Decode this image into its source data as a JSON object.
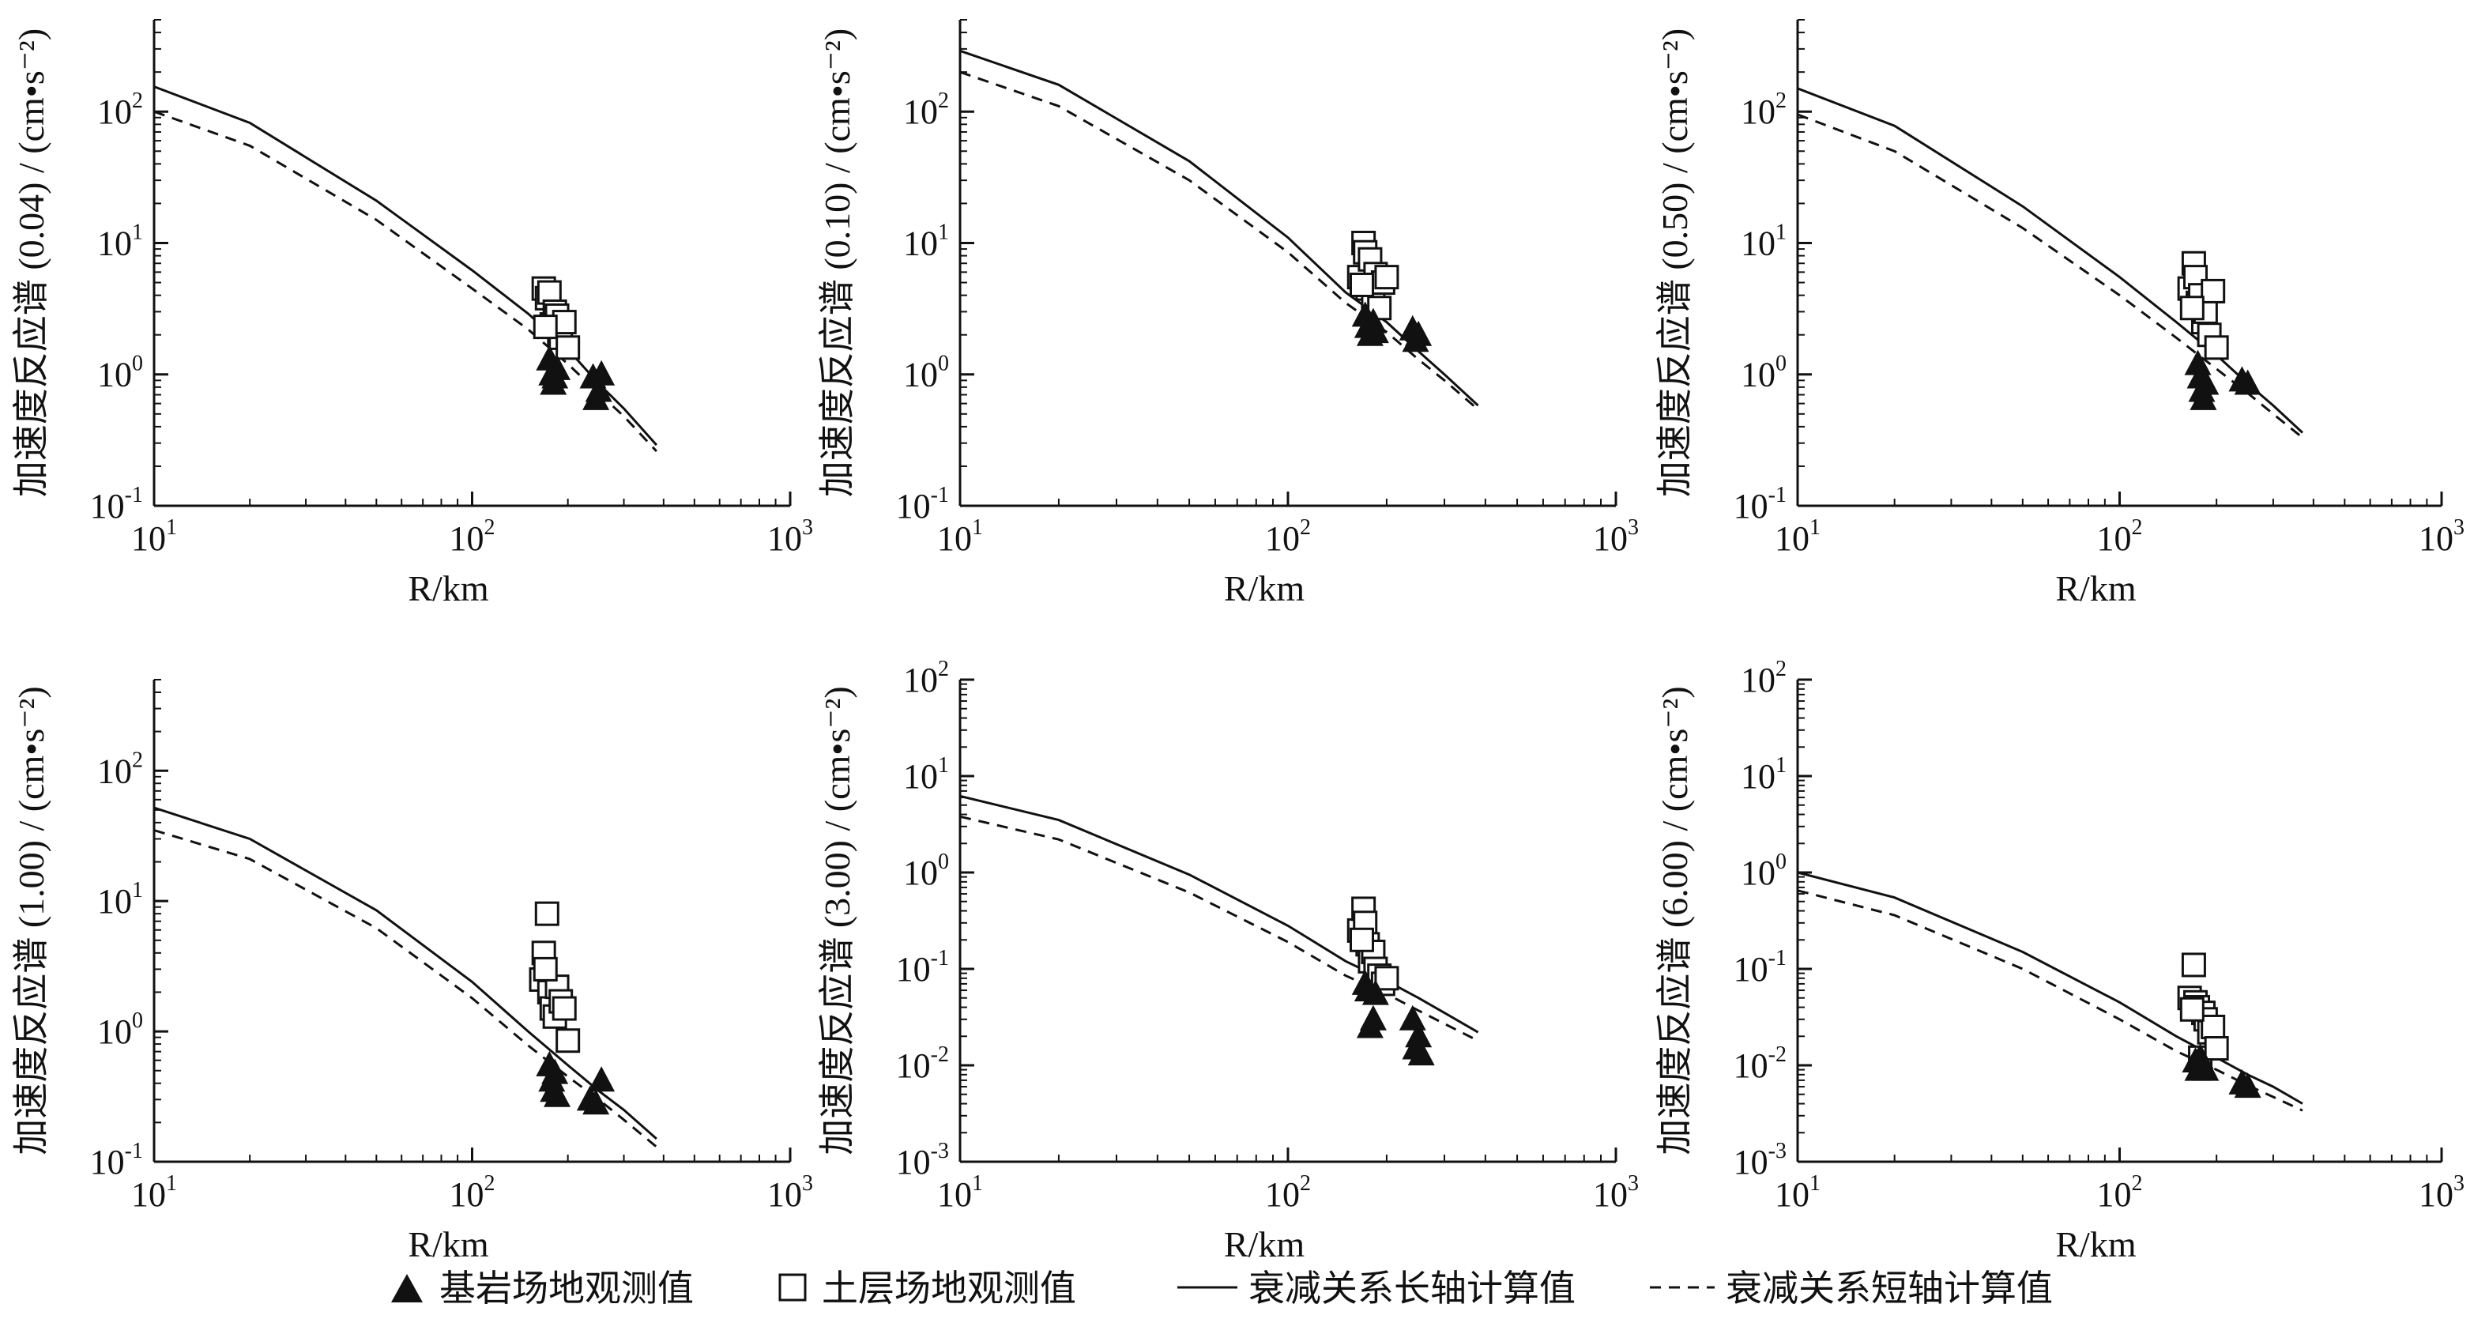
{
  "legend": {
    "rock": "基岩场地观测值",
    "soil": "土层场地观测值",
    "long": "衰减关系长轴计算值",
    "short": "衰减关系短轴计算值"
  },
  "chart_data": [
    {
      "type": "scatter",
      "ylabel": "加速度反应谱 (0.04) / (cm•s⁻²)",
      "xlabel": "R/km",
      "xscale": "log",
      "yscale": "log",
      "xlim": [
        10,
        1000
      ],
      "ylim": [
        0.1,
        500
      ],
      "xticks": [
        10,
        100,
        1000
      ],
      "yticks": [
        0.1,
        1,
        10,
        100
      ],
      "series": [
        {
          "name": "衰减关系长轴计算值",
          "kind": "line",
          "style": "solid",
          "x": [
            10,
            20,
            50,
            100,
            150,
            200,
            250,
            300,
            380
          ],
          "y": [
            155,
            82,
            21,
            6.2,
            2.9,
            1.55,
            0.85,
            0.55,
            0.29
          ]
        },
        {
          "name": "衰减关系短轴计算值",
          "kind": "line",
          "style": "dashed",
          "x": [
            10,
            20,
            50,
            100,
            150,
            200,
            250,
            300,
            380
          ],
          "y": [
            100,
            55,
            15,
            4.5,
            2.2,
            1.2,
            0.72,
            0.48,
            0.26
          ]
        },
        {
          "name": "土层场地观测值",
          "kind": "marker",
          "marker": "square",
          "x": [
            168,
            172,
            175,
            178,
            182,
            185,
            188,
            190,
            195,
            200,
            170
          ],
          "y": [
            4.5,
            3.8,
            4.2,
            2.4,
            3.0,
            2.8,
            2.0,
            1.9,
            2.5,
            1.6,
            2.3
          ]
        },
        {
          "name": "基岩场地观测值",
          "kind": "marker",
          "marker": "triangle",
          "x": [
            175,
            178,
            180,
            182,
            185,
            240,
            245,
            250,
            255
          ],
          "y": [
            1.3,
            1.0,
            0.85,
            0.95,
            1.1,
            0.95,
            0.65,
            0.75,
            1.0
          ]
        }
      ]
    },
    {
      "type": "scatter",
      "ylabel": "加速度反应谱 (0.10) / (cm•s⁻²)",
      "xlabel": "R/km",
      "xscale": "log",
      "yscale": "log",
      "xlim": [
        10,
        1000
      ],
      "ylim": [
        0.1,
        500
      ],
      "xticks": [
        10,
        100,
        1000
      ],
      "yticks": [
        0.1,
        1,
        10,
        100
      ],
      "series": [
        {
          "name": "衰减关系长轴计算值",
          "kind": "line",
          "style": "solid",
          "x": [
            10,
            20,
            50,
            100,
            150,
            200,
            250,
            300,
            380
          ],
          "y": [
            290,
            160,
            42,
            11,
            4.2,
            2.5,
            1.5,
            1.0,
            0.58
          ]
        },
        {
          "name": "衰减关系短轴计算值",
          "kind": "line",
          "style": "dashed",
          "x": [
            10,
            20,
            50,
            100,
            150,
            200,
            250,
            300,
            380
          ],
          "y": [
            200,
            110,
            30,
            8.5,
            3.5,
            2.1,
            1.3,
            0.9,
            0.54
          ]
        },
        {
          "name": "土层场地观测值",
          "kind": "marker",
          "marker": "square",
          "x": [
            165,
            170,
            172,
            175,
            178,
            182,
            185,
            190,
            195,
            200,
            168
          ],
          "y": [
            5.5,
            10.0,
            8.5,
            4.5,
            7.5,
            3.5,
            5.8,
            3.2,
            5.0,
            5.5,
            4.8
          ]
        },
        {
          "name": "基岩场地观测值",
          "kind": "marker",
          "marker": "triangle",
          "x": [
            172,
            175,
            178,
            182,
            185,
            240,
            245,
            250
          ],
          "y": [
            2.8,
            2.3,
            2.0,
            2.5,
            2.1,
            2.2,
            1.8,
            2.0
          ]
        }
      ]
    },
    {
      "type": "scatter",
      "ylabel": "加速度反应谱 (0.50) / (cm•s⁻²)",
      "xlabel": "R/km",
      "xscale": "log",
      "yscale": "log",
      "xlim": [
        10,
        1000
      ],
      "ylim": [
        0.1,
        500
      ],
      "xticks": [
        10,
        100,
        1000
      ],
      "yticks": [
        0.1,
        1,
        10,
        100
      ],
      "series": [
        {
          "name": "衰减关系长轴计算值",
          "kind": "line",
          "style": "solid",
          "x": [
            10,
            20,
            50,
            100,
            150,
            200,
            250,
            300,
            370
          ],
          "y": [
            150,
            78,
            19,
            5.5,
            2.5,
            1.4,
            0.85,
            0.58,
            0.36
          ]
        },
        {
          "name": "衰减关系短轴计算值",
          "kind": "line",
          "style": "dashed",
          "x": [
            10,
            20,
            50,
            100,
            150,
            200,
            250,
            300,
            370
          ],
          "y": [
            95,
            50,
            13,
            4.0,
            1.9,
            1.1,
            0.72,
            0.5,
            0.33
          ]
        },
        {
          "name": "土层场地观测值",
          "kind": "marker",
          "marker": "square",
          "x": [
            165,
            170,
            172,
            175,
            178,
            182,
            185,
            190,
            195,
            200,
            168
          ],
          "y": [
            4.5,
            7.0,
            5.5,
            3.5,
            4.0,
            2.5,
            3.0,
            2.0,
            4.3,
            1.6,
            3.2
          ]
        },
        {
          "name": "基岩场地观测值",
          "kind": "marker",
          "marker": "triangle",
          "x": [
            175,
            178,
            180,
            182,
            185,
            240,
            250
          ],
          "y": [
            1.2,
            0.95,
            0.75,
            0.65,
            0.85,
            0.9,
            0.85
          ]
        }
      ]
    },
    {
      "type": "scatter",
      "ylabel": "加速度反应谱 (1.00) / (cm•s⁻²)",
      "xlabel": "R/km",
      "xscale": "log",
      "yscale": "log",
      "xlim": [
        10,
        1000
      ],
      "ylim": [
        0.1,
        500
      ],
      "xticks": [
        10,
        100,
        1000
      ],
      "yticks": [
        0.1,
        1,
        10,
        100
      ],
      "series": [
        {
          "name": "衰减关系长轴计算值",
          "kind": "line",
          "style": "solid",
          "x": [
            10,
            20,
            50,
            100,
            150,
            200,
            250,
            300,
            380
          ],
          "y": [
            52,
            30,
            8.5,
            2.4,
            1.0,
            0.55,
            0.35,
            0.25,
            0.15
          ]
        },
        {
          "name": "衰减关系短轴计算值",
          "kind": "line",
          "style": "dashed",
          "x": [
            10,
            20,
            50,
            100,
            150,
            200,
            250,
            300,
            380
          ],
          "y": [
            35,
            21,
            6.2,
            1.8,
            0.78,
            0.45,
            0.3,
            0.21,
            0.13
          ]
        },
        {
          "name": "土层场地观测值",
          "kind": "marker",
          "marker": "square",
          "x": [
            165,
            168,
            172,
            175,
            178,
            182,
            185,
            190,
            195,
            200,
            170
          ],
          "y": [
            2.5,
            4.0,
            8.0,
            2.0,
            1.5,
            1.3,
            2.2,
            1.7,
            1.5,
            0.85,
            3.0
          ]
        },
        {
          "name": "基岩场地观测值",
          "kind": "marker",
          "marker": "triangle",
          "x": [
            175,
            178,
            180,
            182,
            185,
            235,
            245,
            255
          ],
          "y": [
            0.55,
            0.42,
            0.35,
            0.48,
            0.32,
            0.3,
            0.28,
            0.42
          ]
        }
      ]
    },
    {
      "type": "scatter",
      "ylabel": "加速度反应谱 (3.00) / (cm•s⁻²)",
      "xlabel": "R/km",
      "xscale": "log",
      "yscale": "log",
      "xlim": [
        10,
        1000
      ],
      "ylim": [
        0.001,
        100
      ],
      "xticks": [
        10,
        100,
        1000
      ],
      "yticks": [
        0.001,
        0.01,
        0.1,
        1,
        10,
        100
      ],
      "series": [
        {
          "name": "衰减关系长轴计算值",
          "kind": "line",
          "style": "solid",
          "x": [
            10,
            20,
            50,
            100,
            150,
            200,
            250,
            300,
            380
          ],
          "y": [
            6.2,
            3.5,
            0.95,
            0.28,
            0.12,
            0.075,
            0.05,
            0.035,
            0.022
          ]
        },
        {
          "name": "衰减关系短轴计算值",
          "kind": "line",
          "style": "dashed",
          "x": [
            10,
            20,
            50,
            100,
            150,
            200,
            250,
            300,
            380
          ],
          "y": [
            3.8,
            2.2,
            0.62,
            0.19,
            0.085,
            0.055,
            0.037,
            0.027,
            0.018
          ]
        },
        {
          "name": "土层场地观测值",
          "kind": "marker",
          "marker": "square",
          "x": [
            165,
            170,
            172,
            175,
            178,
            182,
            185,
            190,
            195,
            200,
            168
          ],
          "y": [
            0.25,
            0.42,
            0.3,
            0.18,
            0.12,
            0.15,
            0.1,
            0.085,
            0.07,
            0.08,
            0.2
          ]
        },
        {
          "name": "基岩场地观测值",
          "kind": "marker",
          "marker": "triangle",
          "x": [
            172,
            175,
            178,
            182,
            185,
            240,
            245,
            250,
            255
          ],
          "y": [
            0.07,
            0.06,
            0.025,
            0.03,
            0.055,
            0.03,
            0.015,
            0.02,
            0.013
          ]
        }
      ]
    },
    {
      "type": "scatter",
      "ylabel": "加速度反应谱 (6.00) / (cm•s⁻²)",
      "xlabel": "R/km",
      "xscale": "log",
      "yscale": "log",
      "xlim": [
        10,
        1000
      ],
      "ylim": [
        0.001,
        100
      ],
      "xticks": [
        10,
        100,
        1000
      ],
      "yticks": [
        0.001,
        0.01,
        0.1,
        1,
        10,
        100
      ],
      "series": [
        {
          "name": "衰减关系长轴计算值",
          "kind": "line",
          "style": "solid",
          "x": [
            10,
            20,
            50,
            100,
            150,
            200,
            250,
            300,
            370
          ],
          "y": [
            1.0,
            0.55,
            0.15,
            0.045,
            0.02,
            0.012,
            0.008,
            0.006,
            0.004
          ]
        },
        {
          "name": "衰减关系短轴计算值",
          "kind": "line",
          "style": "dashed",
          "x": [
            10,
            20,
            50,
            100,
            150,
            200,
            250,
            300,
            370
          ],
          "y": [
            0.65,
            0.36,
            0.1,
            0.03,
            0.014,
            0.009,
            0.0062,
            0.0047,
            0.0034
          ]
        },
        {
          "name": "土层场地观测值",
          "kind": "marker",
          "marker": "square",
          "x": [
            165,
            170,
            172,
            175,
            178,
            182,
            185,
            190,
            195,
            200,
            168
          ],
          "y": [
            0.05,
            0.11,
            0.045,
            0.04,
            0.012,
            0.035,
            0.03,
            0.022,
            0.025,
            0.015,
            0.038
          ]
        },
        {
          "name": "基岩场地观测值",
          "kind": "marker",
          "marker": "triangle",
          "x": [
            172,
            175,
            178,
            182,
            185,
            240,
            250
          ],
          "y": [
            0.011,
            0.009,
            0.012,
            0.01,
            0.009,
            0.0065,
            0.006
          ]
        }
      ]
    }
  ]
}
